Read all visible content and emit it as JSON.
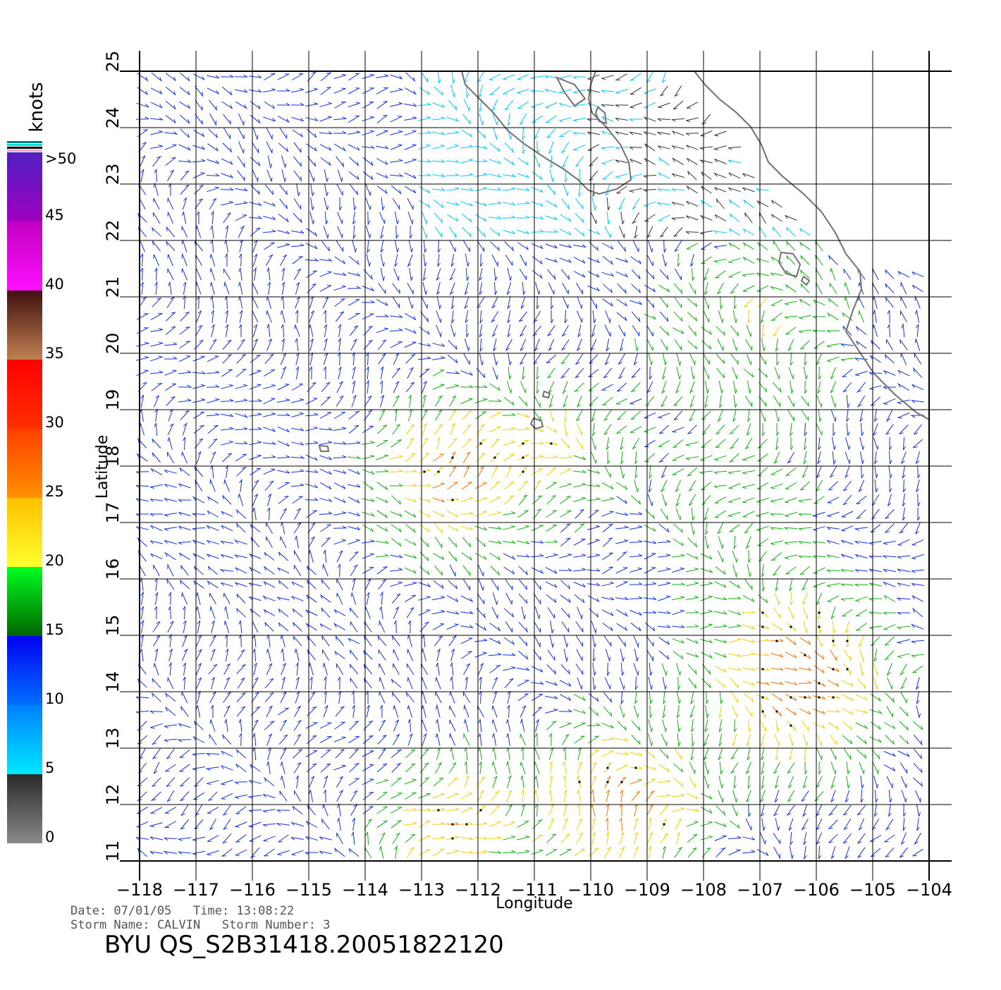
{
  "map": {
    "lon_ticks": [
      "−118",
      "−117",
      "−116",
      "−115",
      "−114",
      "−113",
      "−112",
      "−111",
      "−110",
      "−109",
      "−108",
      "−107",
      "−106",
      "−105",
      "−104"
    ],
    "lat_ticks": [
      "11",
      "12",
      "13",
      "14",
      "15",
      "16",
      "17",
      "18",
      "19",
      "20",
      "21",
      "22",
      "23",
      "24",
      "25"
    ],
    "lon_range": [
      -118,
      -104
    ],
    "lat_range": [
      11,
      25
    ],
    "xlabel": "Longitude",
    "ylabel": "Latitude"
  },
  "legend": {
    "unit": "knots",
    "labels": [
      ">50",
      "45",
      "40",
      "35",
      "30",
      "25",
      "20",
      "15",
      "10",
      "5",
      "0"
    ],
    "scale": [
      {
        "from": 0,
        "to": 5,
        "colors": [
          "#8a8a8a",
          "#2a2a2a"
        ]
      },
      {
        "from": 5,
        "to": 10,
        "colors": [
          "#00e8ff",
          "#0080ff"
        ]
      },
      {
        "from": 10,
        "to": 15,
        "colors": [
          "#0070ff",
          "#0000f0"
        ]
      },
      {
        "from": 15,
        "to": 20,
        "colors": [
          "#006400",
          "#00ff20"
        ]
      },
      {
        "from": 20,
        "to": 25,
        "colors": [
          "#ffff30",
          "#ffc000"
        ]
      },
      {
        "from": 25,
        "to": 30,
        "colors": [
          "#ff9000",
          "#ff4000"
        ]
      },
      {
        "from": 30,
        "to": 35,
        "colors": [
          "#ff3000",
          "#ff0000"
        ]
      },
      {
        "from": 35,
        "to": 40,
        "colors": [
          "#c08050",
          "#401010"
        ]
      },
      {
        "from": 40,
        "to": 45,
        "colors": [
          "#ff10ff",
          "#c000c0"
        ]
      },
      {
        "from": 45,
        "to": 50,
        "colors": [
          "#a000c0",
          "#5020c0"
        ]
      }
    ]
  },
  "info": {
    "date_line": "Date: 07/01/05   Time: 13:08:22",
    "storm_line": "Storm Name: CALVIN   Storm Number: 3",
    "product": "BYU QS_S2B31418.20051822120"
  },
  "colors": {
    "coast": "#707070",
    "grid": "#000000",
    "rain_flag": "#000000"
  }
}
